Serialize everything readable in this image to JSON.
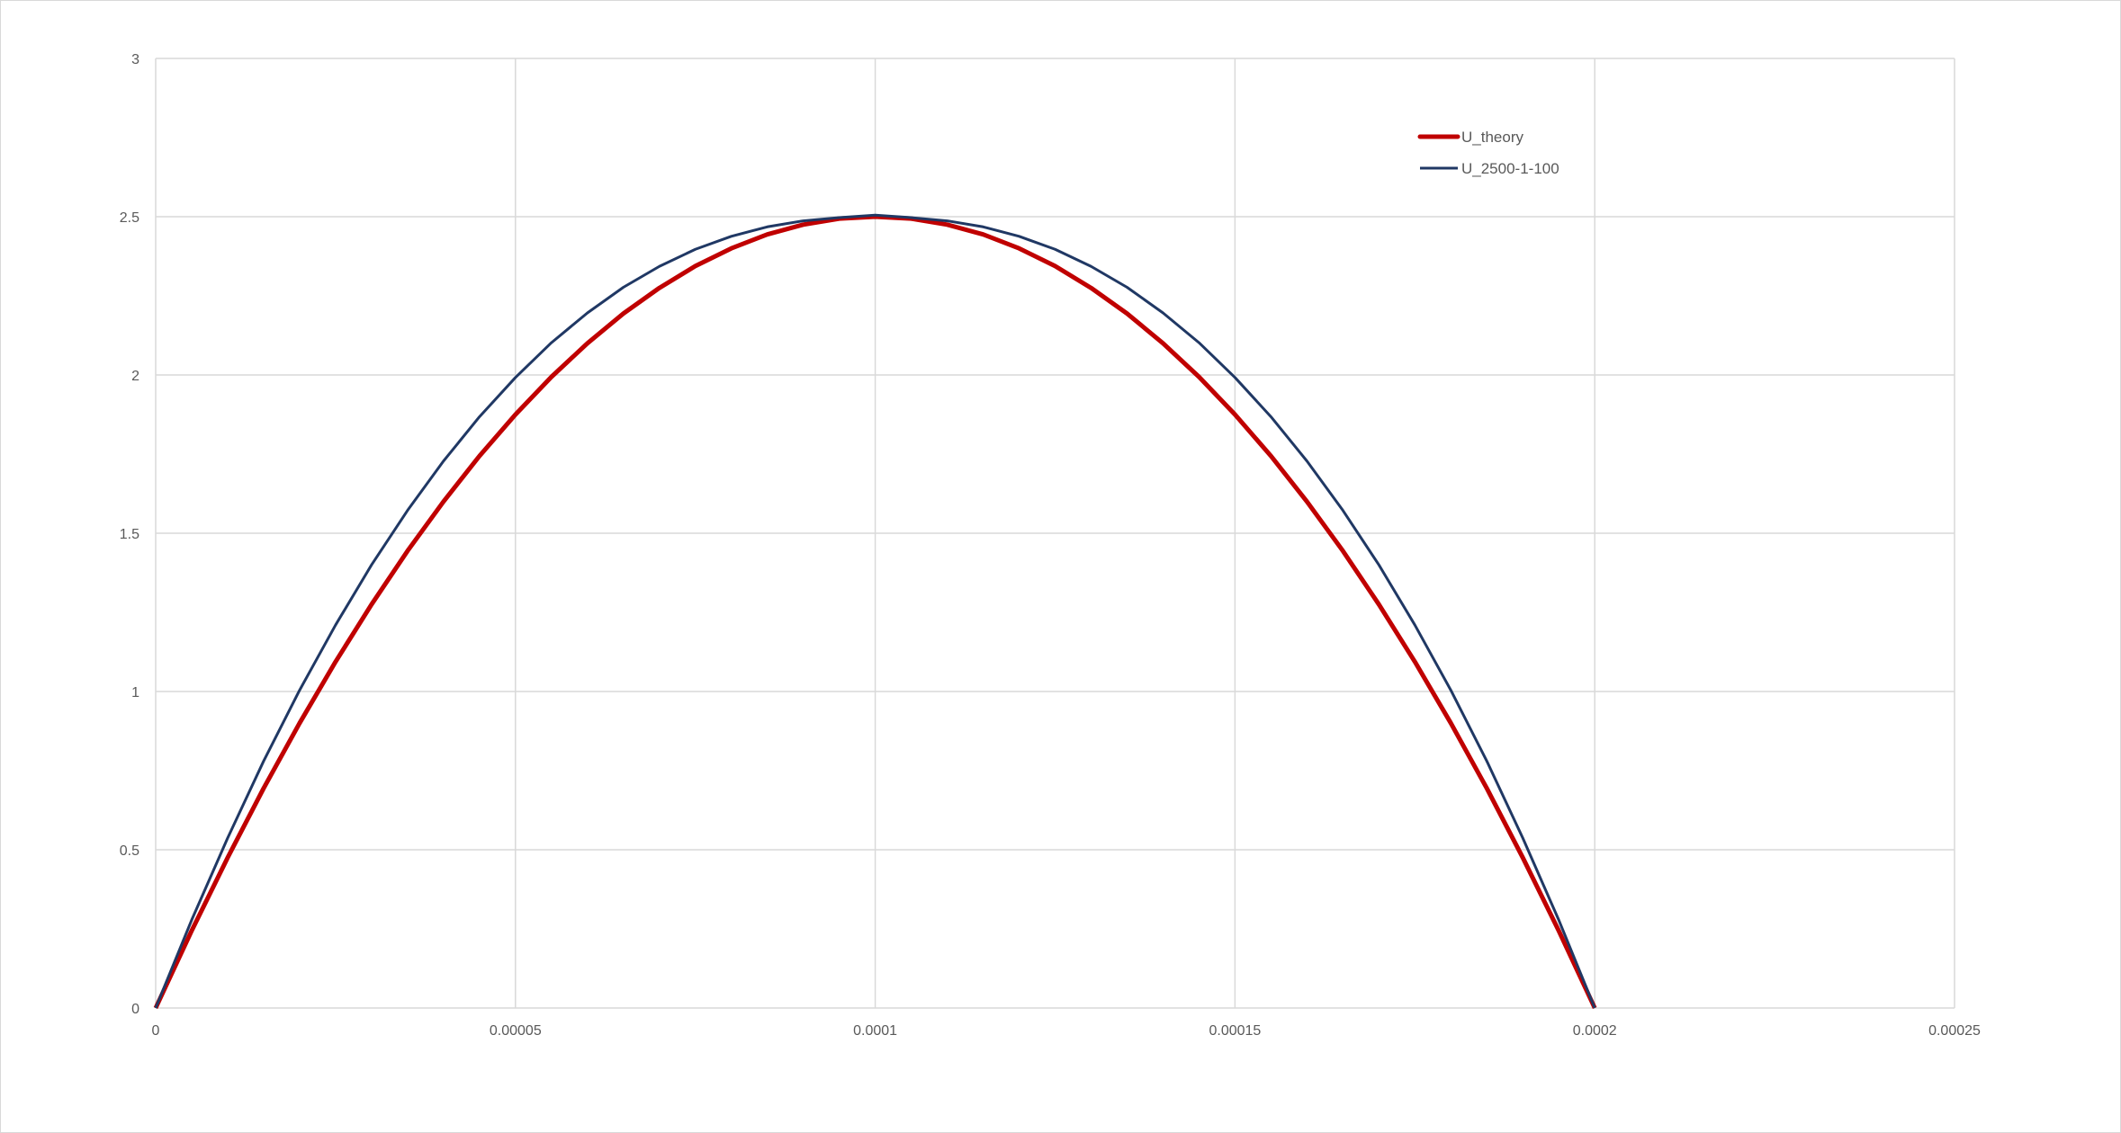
{
  "chart_data": {
    "type": "line",
    "title": "",
    "xlabel": "",
    "ylabel": "",
    "xlim": [
      0,
      0.00025
    ],
    "ylim": [
      0,
      3
    ],
    "grid": true,
    "legend": "top-right",
    "x_ticks": [
      "0",
      "0.00005",
      "0.0001",
      "0.00015",
      "0.0002",
      "0.00025"
    ],
    "y_ticks": [
      "0",
      "0.5",
      "1",
      "1.5",
      "2",
      "2.5",
      "3"
    ],
    "x": [
      0,
      5e-06,
      1e-05,
      1.5e-05,
      2e-05,
      2.5e-05,
      3e-05,
      3.5e-05,
      4e-05,
      4.5e-05,
      5e-05,
      5.5e-05,
      6e-05,
      6.5e-05,
      7e-05,
      7.5e-05,
      8e-05,
      8.5e-05,
      9e-05,
      9.5e-05,
      0.0001,
      0.000105,
      0.00011,
      0.000115,
      0.00012,
      0.000125,
      0.00013,
      0.000135,
      0.00014,
      0.000145,
      0.00015,
      0.000155,
      0.00016,
      0.000165,
      0.00017,
      0.000175,
      0.00018,
      0.000185,
      0.00019,
      0.000195,
      0.0002
    ],
    "series": [
      {
        "name": "U_theory",
        "color": "#C00000",
        "values": [
          0,
          0.244,
          0.475,
          0.694,
          0.9,
          1.094,
          1.275,
          1.444,
          1.6,
          1.744,
          1.875,
          1.994,
          2.1,
          2.194,
          2.275,
          2.344,
          2.4,
          2.444,
          2.475,
          2.494,
          2.5,
          2.494,
          2.475,
          2.444,
          2.4,
          2.344,
          2.275,
          2.194,
          2.1,
          1.994,
          1.875,
          1.744,
          1.6,
          1.444,
          1.275,
          1.094,
          0.9,
          0.694,
          0.475,
          0.244,
          0
        ]
      },
      {
        "name": "U_2500-1-100",
        "color": "#203864",
        "values": [
          0,
          0.278,
          0.537,
          0.78,
          1.004,
          1.21,
          1.4,
          1.572,
          1.728,
          1.868,
          1.992,
          2.102,
          2.196,
          2.277,
          2.343,
          2.397,
          2.438,
          2.468,
          2.487,
          2.497,
          2.505,
          2.497,
          2.487,
          2.468,
          2.438,
          2.397,
          2.343,
          2.277,
          2.196,
          2.102,
          1.992,
          1.868,
          1.728,
          1.572,
          1.4,
          1.21,
          1.004,
          0.78,
          0.537,
          0.278,
          0
        ]
      }
    ]
  }
}
